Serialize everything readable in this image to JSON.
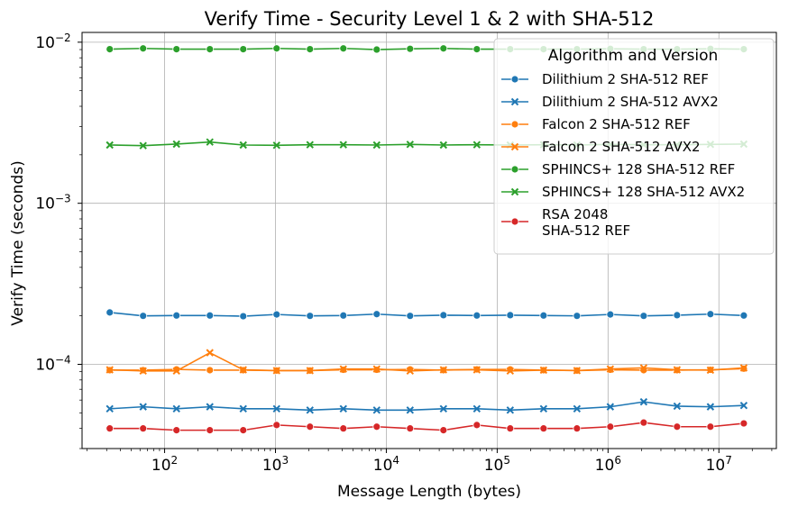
{
  "chart_data": {
    "type": "line",
    "title": "Verify Time - Security Level 1 & 2 with SHA-512",
    "xlabel": "Message Length (bytes)",
    "ylabel": "Verify Time (seconds)",
    "xscale": "log",
    "yscale": "log",
    "xlim": [
      18,
      33000000
    ],
    "ylim": [
      3e-05,
      0.0115
    ],
    "grid": true,
    "legend_title": "Algorithm and Version",
    "legend_position": "top-right",
    "x_ticks": [
      {
        "value": 100,
        "base": "10",
        "exp": "2"
      },
      {
        "value": 1000,
        "base": "10",
        "exp": "3"
      },
      {
        "value": 10000,
        "base": "10",
        "exp": "4"
      },
      {
        "value": 100000,
        "base": "10",
        "exp": "5"
      },
      {
        "value": 1000000,
        "base": "10",
        "exp": "6"
      },
      {
        "value": 10000000,
        "base": "10",
        "exp": "7"
      }
    ],
    "y_ticks": [
      {
        "value": 0.0001,
        "base": "10",
        "exp": "−4"
      },
      {
        "value": 0.001,
        "base": "10",
        "exp": "−3"
      },
      {
        "value": 0.01,
        "base": "10",
        "exp": "−2"
      }
    ],
    "x": [
      32,
      64,
      128,
      256,
      512,
      1024,
      2048,
      4096,
      8192,
      16384,
      32768,
      65536,
      131072,
      262144,
      524288,
      1048576,
      2097152,
      4194304,
      8388608,
      16777216
    ],
    "series": [
      {
        "name": "Dilithium 2 SHA-512 REF",
        "color": "#1f77b4",
        "marker": "circle",
        "values": [
          0.00021,
          0.0002,
          0.000201,
          0.000201,
          0.000199,
          0.000204,
          0.0002,
          0.000201,
          0.000205,
          0.0002,
          0.000202,
          0.000201,
          0.000202,
          0.000201,
          0.0002,
          0.000204,
          0.0002,
          0.000202,
          0.000205,
          0.000201
        ]
      },
      {
        "name": "Dilithium 2 SHA-512 AVX2",
        "color": "#1f77b4",
        "marker": "x",
        "values": [
          5.3e-05,
          5.45e-05,
          5.3e-05,
          5.45e-05,
          5.3e-05,
          5.3e-05,
          5.2e-05,
          5.3e-05,
          5.2e-05,
          5.2e-05,
          5.3e-05,
          5.3e-05,
          5.2e-05,
          5.3e-05,
          5.3e-05,
          5.45e-05,
          5.85e-05,
          5.5e-05,
          5.45e-05,
          5.55e-05
        ]
      },
      {
        "name": "Falcon 2 SHA-512 REF",
        "color": "#ff7f0e",
        "marker": "circle",
        "values": [
          9.2e-05,
          9.2e-05,
          9.3e-05,
          9.2e-05,
          9.2e-05,
          9.15e-05,
          9.15e-05,
          9.25e-05,
          9.25e-05,
          9.3e-05,
          9.2e-05,
          9.3e-05,
          9.3e-05,
          9.2e-05,
          9.15e-05,
          9.25e-05,
          9.2e-05,
          9.2e-05,
          9.25e-05,
          9.4e-05
        ]
      },
      {
        "name": "Falcon 2 SHA-512 AVX2",
        "color": "#ff7f0e",
        "marker": "x",
        "values": [
          9.25e-05,
          9.1e-05,
          9.1e-05,
          0.000118,
          9.25e-05,
          9.15e-05,
          9.15e-05,
          9.35e-05,
          9.35e-05,
          9.1e-05,
          9.25e-05,
          9.25e-05,
          9.1e-05,
          9.2e-05,
          9.15e-05,
          9.35e-05,
          9.5e-05,
          9.25e-05,
          9.2e-05,
          9.5e-05
        ]
      },
      {
        "name": "SPHINCS+ 128 SHA-512 REF",
        "color": "#2ca02c",
        "marker": "circle",
        "values": [
          0.00905,
          0.00915,
          0.00905,
          0.00905,
          0.00905,
          0.00915,
          0.00905,
          0.00915,
          0.009,
          0.0091,
          0.00915,
          0.00905,
          0.00905,
          0.00905,
          0.00905,
          0.0091,
          0.00905,
          0.00905,
          0.0091,
          0.00905
        ]
      },
      {
        "name": "SPHINCS+ 128 SHA-512 AVX2",
        "color": "#2ca02c",
        "marker": "x",
        "values": [
          0.0023,
          0.00228,
          0.00233,
          0.0024,
          0.0023,
          0.00229,
          0.00231,
          0.00231,
          0.0023,
          0.00232,
          0.0023,
          0.00231,
          0.0023,
          0.00231,
          0.0023,
          0.00232,
          0.00231,
          0.00231,
          0.00232,
          0.00233
        ]
      },
      {
        "name": "RSA 2048\nSHA-512 REF",
        "color": "#d62728",
        "marker": "circle",
        "values": [
          4e-05,
          4e-05,
          3.9e-05,
          3.9e-05,
          3.9e-05,
          4.2e-05,
          4.1e-05,
          4e-05,
          4.1e-05,
          4e-05,
          3.9e-05,
          4.2e-05,
          4e-05,
          4e-05,
          4e-05,
          4.1e-05,
          4.35e-05,
          4.1e-05,
          4.1e-05,
          4.3e-05
        ]
      }
    ]
  }
}
